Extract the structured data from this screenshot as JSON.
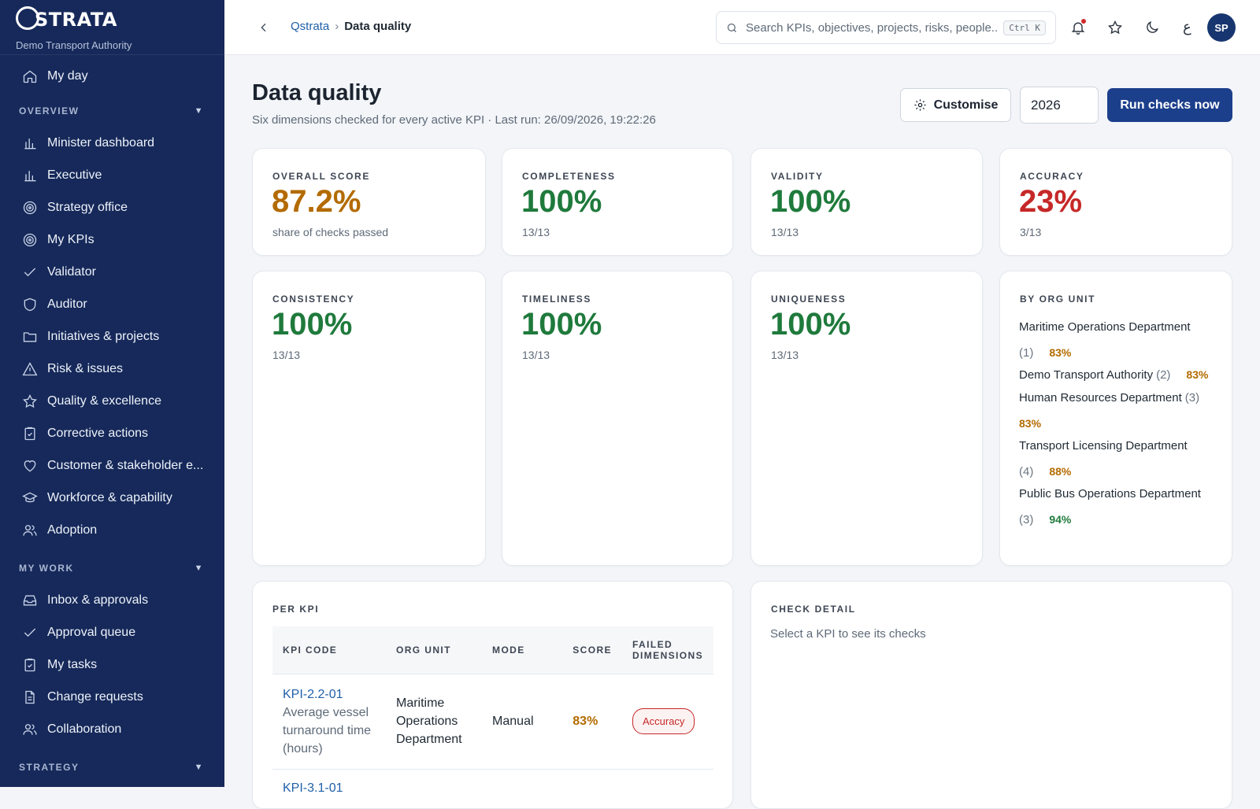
{
  "brand": {
    "logo_text": "STRATA",
    "logo_q": "Q",
    "org": "Demo Transport Authority"
  },
  "sidebar": {
    "top_items": [
      {
        "label": "My day",
        "icon": "home-icon"
      }
    ],
    "sections": [
      {
        "title": "OVERVIEW",
        "items": [
          {
            "label": "Minister dashboard",
            "icon": "bar-chart-icon"
          },
          {
            "label": "Executive",
            "icon": "bar-chart-icon"
          },
          {
            "label": "Strategy office",
            "icon": "target-icon"
          },
          {
            "label": "My KPIs",
            "icon": "target-icon"
          },
          {
            "label": "Validator",
            "icon": "check-icon"
          },
          {
            "label": "Auditor",
            "icon": "shield-icon"
          },
          {
            "label": "Initiatives & projects",
            "icon": "folder-icon"
          },
          {
            "label": "Risk & issues",
            "icon": "warning-icon"
          },
          {
            "label": "Quality & excellence",
            "icon": "star-icon"
          },
          {
            "label": "Corrective actions",
            "icon": "clipboard-check-icon"
          },
          {
            "label": "Customer & stakeholder e...",
            "icon": "heart-icon"
          },
          {
            "label": "Workforce & capability",
            "icon": "graduation-cap-icon"
          },
          {
            "label": "Adoption",
            "icon": "users-icon"
          }
        ]
      },
      {
        "title": "MY WORK",
        "items": [
          {
            "label": "Inbox & approvals",
            "icon": "inbox-icon"
          },
          {
            "label": "Approval queue",
            "icon": "check-icon"
          },
          {
            "label": "My tasks",
            "icon": "clipboard-check-icon"
          },
          {
            "label": "Change requests",
            "icon": "document-icon"
          },
          {
            "label": "Collaboration",
            "icon": "users-icon"
          }
        ]
      },
      {
        "title": "STRATEGY",
        "items": []
      }
    ]
  },
  "topbar": {
    "breadcrumb_root": "Qstrata",
    "breadcrumb_sep": "›",
    "breadcrumb_current": "Data quality",
    "search_placeholder": "Search KPIs, objectives, projects, risks, people...",
    "search_shortcut": "Ctrl K",
    "lang_label": "ع",
    "avatar_initials": "SP"
  },
  "page": {
    "title": "Data quality",
    "subtitle": "Six dimensions checked for every active KPI · Last run: 26/09/2026, 19:22:26",
    "customise_label": "Customise",
    "year_value": "2026",
    "run_label": "Run checks now"
  },
  "metrics": {
    "overall": {
      "label": "OVERALL SCORE",
      "value": "87.2%",
      "meta": "share of checks passed"
    },
    "completeness": {
      "label": "COMPLETENESS",
      "value": "100%",
      "meta": "13/13"
    },
    "validity": {
      "label": "VALIDITY",
      "value": "100%",
      "meta": "13/13"
    },
    "accuracy": {
      "label": "ACCURACY",
      "value": "23%",
      "meta": "3/13"
    },
    "consistency": {
      "label": "CONSISTENCY",
      "value": "100%",
      "meta": "13/13"
    },
    "timeliness": {
      "label": "TIMELINESS",
      "value": "100%",
      "meta": "13/13"
    },
    "uniqueness": {
      "label": "UNIQUENESS",
      "value": "100%",
      "meta": "13/13"
    }
  },
  "by_org": {
    "label": "BY ORG UNIT",
    "rows": [
      {
        "name": "Maritime Operations Department",
        "count": "(1)",
        "pct": "83%",
        "color": "#b36b00"
      },
      {
        "name": "Demo Transport Authority",
        "count": "(2)",
        "pct": "83%",
        "color": "#b36b00"
      },
      {
        "name": "Human Resources Department",
        "count": "(3)",
        "pct": "83%",
        "color": "#b36b00"
      },
      {
        "name": "Transport Licensing Department",
        "count": "(4)",
        "pct": "88%",
        "color": "#b36b00"
      },
      {
        "name": "Public Bus Operations Department",
        "count": "(3)",
        "pct": "94%",
        "color": "#1f7a3c"
      }
    ]
  },
  "per_kpi": {
    "label": "PER KPI",
    "columns": {
      "code": "KPI CODE",
      "org": "ORG UNIT",
      "mode": "MODE",
      "score": "SCORE",
      "failed": "FAILED DIMENSIONS"
    },
    "rows": [
      {
        "code": "KPI-2.2-01",
        "desc": "Average vessel turnaround time (hours)",
        "org": "Maritime Operations Department",
        "mode": "Manual",
        "score": "83%",
        "failed": "Accuracy"
      }
    ],
    "next_code": "KPI-3.1-01"
  },
  "check_detail": {
    "label": "CHECK DETAIL",
    "hint": "Select a KPI to see its checks"
  },
  "colors": {
    "sidebar_bg": "#16295a",
    "accent": "#1c3f8c",
    "amber": "#b36b00",
    "green": "#1f7a3c",
    "red": "#c62828"
  }
}
